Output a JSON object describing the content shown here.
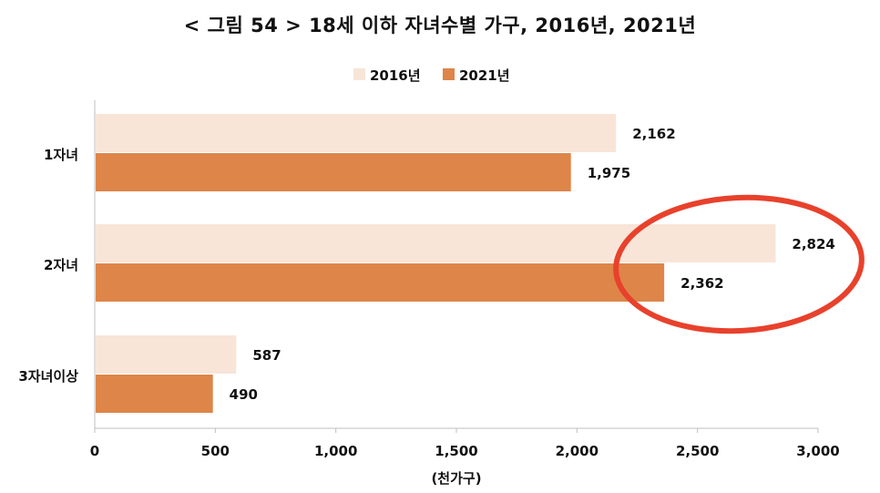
{
  "chart_data": {
    "type": "bar",
    "orientation": "horizontal",
    "title": "< 그림 54 > 18세 이하 자녀수별 가구, 2016년, 2021년",
    "xlabel": "(천가구)",
    "ylabel": "",
    "categories": [
      "1자녀",
      "2자녀",
      "3자녀이상"
    ],
    "series": [
      {
        "name": "2016년",
        "values": [
          2162,
          2824,
          587
        ],
        "labels": [
          "2,162",
          "2,824",
          "587"
        ],
        "color": "#f8e5d8"
      },
      {
        "name": "2021년",
        "values": [
          1975,
          2362,
          490
        ],
        "labels": [
          "1,975",
          "2,362",
          "490"
        ],
        "color": "#de8549"
      }
    ],
    "xlim": [
      0,
      3000
    ],
    "xticks": [
      0,
      500,
      1000,
      1500,
      2000,
      2500,
      3000
    ],
    "xtick_labels": [
      "0",
      "500",
      "1,000",
      "1,500",
      "2,000",
      "2,500",
      "3,000"
    ],
    "grid": false,
    "legend_position": "top",
    "annotation": {
      "shape": "ellipse",
      "highlights": "2자녀",
      "color": "#e8412c"
    }
  }
}
